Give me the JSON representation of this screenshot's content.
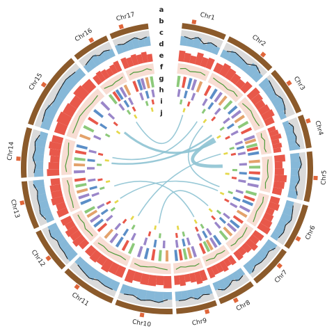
{
  "chart_data": {
    "type": "circos",
    "track_labels": [
      "a",
      "b",
      "c",
      "d",
      "e",
      "f",
      "g",
      "h",
      "i",
      "j"
    ],
    "feature_colors": [
      "#8cc97a",
      "#e8584a",
      "#5b8ec7",
      "#9a86c9",
      "#e3a26b"
    ],
    "chromosomes": [
      {
        "name": "Chr1",
        "length": 24,
        "centromere": 6,
        "coverage": [
          0.6,
          0.5,
          0.7,
          0.4,
          0.6,
          0.5
        ],
        "density": [
          0.7,
          0.6,
          0.5,
          0.8,
          0.6,
          0.7
        ],
        "gc": [
          0.5,
          0.6,
          0.4,
          0.5,
          0.6,
          0.5
        ],
        "f": [
          2,
          7,
          12,
          16,
          21
        ],
        "g": [
          4,
          11,
          19
        ],
        "h": [
          8,
          17
        ],
        "i": [
          14
        ]
      },
      {
        "name": "Chr2",
        "length": 28,
        "centromere": 20,
        "coverage": [
          0.5,
          0.7,
          0.6,
          0.5,
          0.8,
          0.6
        ],
        "density": [
          0.6,
          0.8,
          0.7,
          0.6,
          0.5,
          0.7
        ],
        "gc": [
          0.6,
          0.5,
          0.5,
          0.4,
          0.6,
          0.5
        ],
        "f": [
          3,
          9,
          14,
          19,
          25
        ],
        "g": [
          6,
          13,
          22
        ],
        "h": [
          10,
          24
        ],
        "i": [
          18
        ]
      },
      {
        "name": "Chr3",
        "length": 26,
        "centromere": 10,
        "coverage": [
          0.7,
          0.6,
          0.5,
          0.7,
          0.6,
          0.4
        ],
        "density": [
          0.8,
          0.7,
          0.6,
          0.7,
          0.8,
          0.6
        ],
        "gc": [
          0.4,
          0.5,
          0.6,
          0.5,
          0.5,
          0.6
        ],
        "f": [
          1,
          6,
          11,
          17,
          23
        ],
        "g": [
          5,
          12,
          20
        ],
        "h": [
          9,
          21
        ],
        "i": [
          15
        ]
      },
      {
        "name": "Chr4",
        "length": 18,
        "centromere": 4,
        "coverage": [
          0.4,
          0.6,
          0.5,
          0.6,
          0.5,
          0.7
        ],
        "density": [
          0.5,
          0.6,
          0.7,
          0.5,
          0.6,
          0.5
        ],
        "gc": [
          0.5,
          0.4,
          0.6,
          0.5,
          0.4,
          0.5
        ],
        "f": [
          2,
          5,
          9,
          12,
          16
        ],
        "g": [
          3,
          8,
          14
        ],
        "h": [
          6,
          13
        ],
        "i": [
          10
        ]
      },
      {
        "name": "Chr5",
        "length": 27,
        "centromere": 14,
        "coverage": [
          0.6,
          0.7,
          0.5,
          0.6,
          0.4,
          0.6
        ],
        "density": [
          0.7,
          0.5,
          0.6,
          0.8,
          0.7,
          0.6
        ],
        "gc": [
          0.6,
          0.5,
          0.5,
          0.6,
          0.4,
          0.5
        ],
        "f": [
          3,
          8,
          13,
          18,
          24
        ],
        "g": [
          5,
          14,
          22
        ],
        "h": [
          11,
          20
        ],
        "i": [
          16
        ]
      },
      {
        "name": "Chr6",
        "length": 25,
        "centromere": 18,
        "coverage": [
          0.5,
          0.6,
          0.7,
          0.5,
          0.6,
          0.5
        ],
        "density": [
          0.6,
          0.7,
          0.5,
          0.6,
          0.7,
          0.8
        ],
        "gc": [
          0.5,
          0.6,
          0.5,
          0.4,
          0.5,
          0.6
        ],
        "f": [
          2,
          7,
          11,
          17,
          22
        ],
        "g": [
          4,
          12,
          19
        ],
        "h": [
          8,
          18
        ],
        "i": [
          13
        ]
      },
      {
        "name": "Chr7",
        "length": 23,
        "centromere": 8,
        "coverage": [
          0.7,
          0.5,
          0.6,
          0.6,
          0.5,
          0.7
        ],
        "density": [
          0.7,
          0.6,
          0.8,
          0.6,
          0.5,
          0.6
        ],
        "gc": [
          0.4,
          0.5,
          0.6,
          0.5,
          0.6,
          0.5
        ],
        "f": [
          1,
          6,
          10,
          15,
          20
        ],
        "g": [
          5,
          11,
          18
        ],
        "h": [
          7,
          16
        ],
        "i": [
          12
        ]
      },
      {
        "name": "Chr8",
        "length": 20,
        "centromere": 12,
        "coverage": [
          0.5,
          0.6,
          0.4,
          0.6,
          0.7,
          0.5
        ],
        "density": [
          0.6,
          0.5,
          0.7,
          0.6,
          0.6,
          0.7
        ],
        "gc": [
          0.5,
          0.5,
          0.4,
          0.6,
          0.5,
          0.5
        ],
        "f": [
          2,
          6,
          10,
          13,
          17
        ],
        "g": [
          4,
          9,
          15
        ],
        "h": [
          7,
          14
        ],
        "i": [
          11
        ]
      },
      {
        "name": "Chr9",
        "length": 22,
        "centromere": 6,
        "coverage": [
          0.6,
          0.5,
          0.7,
          0.5,
          0.6,
          0.6
        ],
        "density": [
          0.7,
          0.8,
          0.6,
          0.5,
          0.7,
          0.6
        ],
        "gc": [
          0.5,
          0.6,
          0.5,
          0.5,
          0.4,
          0.6
        ],
        "f": [
          3,
          7,
          11,
          15,
          19
        ],
        "g": [
          5,
          10,
          17
        ],
        "h": [
          8,
          16
        ],
        "i": [
          13
        ]
      },
      {
        "name": "Chr10",
        "length": 31,
        "centromere": 16,
        "coverage": [
          0.5,
          0.7,
          0.6,
          0.7,
          0.5,
          0.6
        ],
        "density": [
          0.8,
          0.6,
          0.7,
          0.7,
          0.6,
          0.8
        ],
        "gc": [
          0.6,
          0.5,
          0.4,
          0.5,
          0.6,
          0.5
        ],
        "f": [
          3,
          9,
          15,
          21,
          27
        ],
        "g": [
          6,
          15,
          25
        ],
        "h": [
          11,
          23
        ],
        "i": [
          18
        ]
      },
      {
        "name": "Chr11",
        "length": 30,
        "centromere": 20,
        "coverage": [
          0.6,
          0.6,
          0.5,
          0.7,
          0.6,
          0.5
        ],
        "density": [
          0.7,
          0.7,
          0.8,
          0.6,
          0.7,
          0.6
        ],
        "gc": [
          0.5,
          0.4,
          0.5,
          0.6,
          0.5,
          0.6
        ],
        "f": [
          2,
          8,
          14,
          20,
          26
        ],
        "g": [
          5,
          14,
          24
        ],
        "h": [
          10,
          22
        ],
        "i": [
          17
        ]
      },
      {
        "name": "Chr12",
        "length": 24,
        "centromere": 9,
        "coverage": [
          0.7,
          0.6,
          0.6,
          0.5,
          0.7,
          0.6
        ],
        "density": [
          0.6,
          0.8,
          0.7,
          0.8,
          0.6,
          0.7
        ],
        "gc": [
          0.5,
          0.5,
          0.6,
          0.4,
          0.5,
          0.5
        ],
        "f": [
          2,
          7,
          12,
          17,
          21
        ],
        "g": [
          4,
          12,
          19
        ],
        "h": [
          9,
          18
        ],
        "i": [
          14
        ]
      },
      {
        "name": "Chr13",
        "length": 26,
        "centromere": 15,
        "coverage": [
          0.5,
          0.7,
          0.6,
          0.6,
          0.5,
          0.7
        ],
        "density": [
          0.7,
          0.6,
          0.8,
          0.7,
          0.7,
          0.6
        ],
        "gc": [
          0.6,
          0.5,
          0.5,
          0.5,
          0.4,
          0.5
        ],
        "f": [
          3,
          8,
          13,
          18,
          23
        ],
        "g": [
          6,
          13,
          21
        ],
        "h": [
          10,
          20
        ],
        "i": [
          16
        ]
      },
      {
        "name": "Chr14",
        "length": 27,
        "centromere": 10,
        "coverage": [
          0.6,
          0.5,
          0.7,
          0.6,
          0.7,
          0.5
        ],
        "density": [
          0.8,
          0.7,
          0.6,
          0.7,
          0.8,
          0.7
        ],
        "gc": [
          0.5,
          0.6,
          0.5,
          0.4,
          0.5,
          0.6
        ],
        "f": [
          2,
          8,
          13,
          19,
          24
        ],
        "g": [
          5,
          13,
          22
        ],
        "h": [
          9,
          21
        ],
        "i": [
          15
        ]
      },
      {
        "name": "Chr15",
        "length": 42,
        "centromere": 22,
        "coverage": [
          0.6,
          0.7,
          0.5,
          0.6,
          0.7,
          0.6
        ],
        "density": [
          0.7,
          0.8,
          0.7,
          0.6,
          0.8,
          0.7
        ],
        "gc": [
          0.5,
          0.5,
          0.6,
          0.5,
          0.4,
          0.5
        ],
        "f": [
          4,
          12,
          20,
          28,
          37
        ],
        "g": [
          8,
          21,
          34
        ],
        "h": [
          15,
          31
        ],
        "i": [
          25
        ]
      },
      {
        "name": "Chr16",
        "length": 20,
        "centromere": 12,
        "coverage": [
          0.5,
          0.6,
          0.7,
          0.5,
          0.6,
          0.5
        ],
        "density": [
          0.6,
          0.7,
          0.6,
          0.5,
          0.6,
          0.7
        ],
        "gc": [
          0.6,
          0.5,
          0.4,
          0.5,
          0.5,
          0.6
        ],
        "f": [
          2,
          6,
          9,
          13,
          17
        ],
        "g": [
          4,
          10,
          15
        ],
        "h": [
          7,
          14
        ],
        "i": [
          11
        ]
      },
      {
        "name": "Chr17",
        "length": 21,
        "centromere": 7,
        "coverage": [
          0.6,
          0.5,
          0.6,
          0.7,
          0.5,
          0.6
        ],
        "density": [
          0.7,
          0.6,
          0.7,
          0.6,
          0.7,
          0.5
        ],
        "gc": [
          0.5,
          0.6,
          0.5,
          0.5,
          0.6,
          0.4
        ],
        "f": [
          3,
          7,
          10,
          14,
          18
        ],
        "g": [
          5,
          11,
          17
        ],
        "h": [
          8,
          15
        ],
        "i": [
          12
        ]
      }
    ],
    "links": [
      {
        "source": "Chr3",
        "source_pos": 14,
        "target": "Chr5",
        "target_pos": 6,
        "width": 3
      },
      {
        "source": "Chr3",
        "source_pos": 18,
        "target": "Chr15",
        "target_pos": 30,
        "width": 2
      },
      {
        "source": "Chr3",
        "source_pos": 8,
        "target": "Chr14",
        "target_pos": 12,
        "width": 1.5
      },
      {
        "source": "Chr16",
        "source_pos": 8,
        "target": "Chr1",
        "target_pos": 14,
        "width": 1
      },
      {
        "source": "Chr14",
        "source_pos": 20,
        "target": "Chr2",
        "target_pos": 10,
        "width": 1
      },
      {
        "source": "Chr4",
        "source_pos": 9,
        "target": "Chr11",
        "target_pos": 12,
        "width": 1
      },
      {
        "source": "Chr8",
        "source_pos": 10,
        "target": "Chr13",
        "target_pos": 8,
        "width": 1
      },
      {
        "source": "Chr6",
        "source_pos": 12,
        "target": "Chr12",
        "target_pos": 15,
        "width": 1
      },
      {
        "source": "Chr10",
        "source_pos": 14,
        "target": "Chr7",
        "target_pos": 10,
        "width": 1
      },
      {
        "source": "Chr2",
        "source_pos": 20,
        "target": "Chr6",
        "target_pos": 6,
        "width": 1
      }
    ]
  }
}
